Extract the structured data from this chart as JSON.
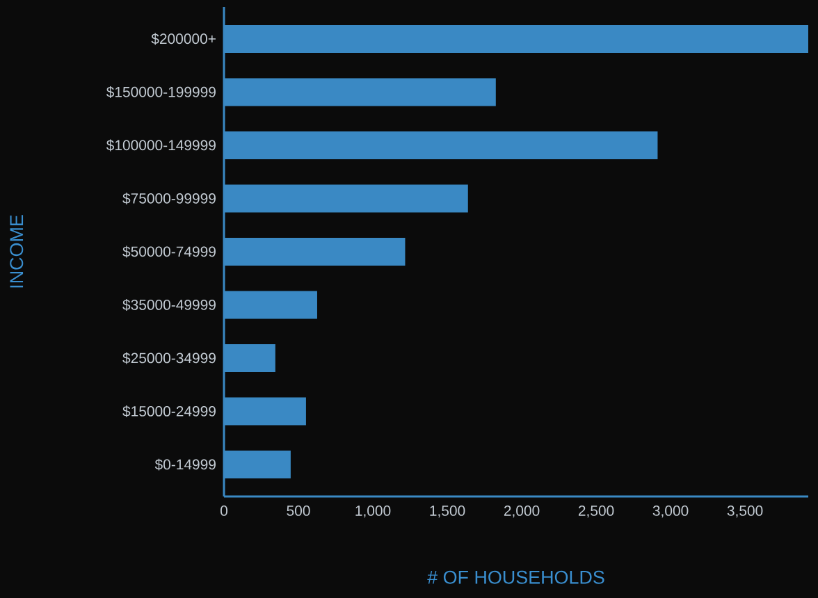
{
  "chart_data": {
    "type": "bar",
    "orientation": "horizontal",
    "xlabel": "# OF HOUSEHOLDS",
    "ylabel": "INCOME",
    "categories": [
      "$200000+",
      "$150000-199999",
      "$100000-149999",
      "$75000-99999",
      "$50000-74999",
      "$35000-49999",
      "$25000-34999",
      "$15000-24999",
      "$0-14999"
    ],
    "values": [
      3925,
      1826,
      2913,
      1639,
      1217,
      626,
      345,
      551,
      448
    ],
    "color": "#3a89c4",
    "xlim": [
      0,
      3925
    ],
    "xticks": [
      0,
      500,
      {
        "value": 1000,
        "label": "1,000"
      },
      {
        "value": 1500,
        "label": "1,500"
      },
      {
        "value": 2000,
        "label": "2,000"
      },
      {
        "value": 2500,
        "label": "2,500"
      },
      {
        "value": 3000,
        "label": "3,000"
      },
      {
        "value": 3500,
        "label": "3,500"
      }
    ],
    "grid": false
  }
}
